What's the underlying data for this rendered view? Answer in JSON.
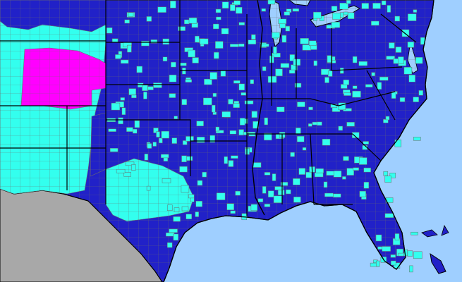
{
  "map": {
    "palette": {
      "ocean": "#9fcfff",
      "land_outside": "#a8a8a8",
      "county_dark_blue": "#2121c8",
      "county_cyan": "#33ffee",
      "county_magenta": "#ff00ff",
      "county_border": "#6b6b6b",
      "state_border": "#000000",
      "coastline": "#000000"
    },
    "legend": null,
    "labels": []
  }
}
